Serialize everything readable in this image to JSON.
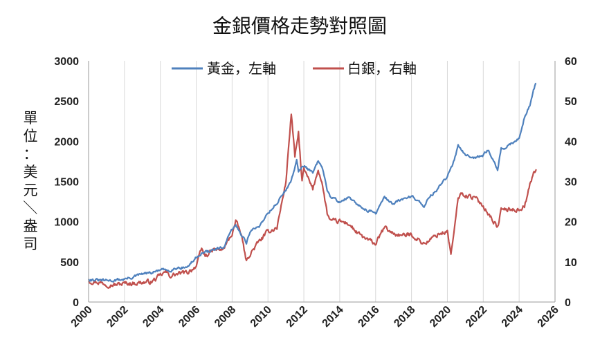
{
  "chart_data": {
    "type": "line",
    "title": "金銀價格走勢對照圖",
    "ylabel": "單位：美元／盎司",
    "xlabel": "",
    "xlim": [
      2000,
      2026
    ],
    "ylim_left": [
      0,
      3000
    ],
    "ylim_right": [
      0,
      60
    ],
    "x_ticks": [
      "2000",
      "2002",
      "2004",
      "2006",
      "2008",
      "2010",
      "2012",
      "2014",
      "2016",
      "2018",
      "2020",
      "2022",
      "2024",
      "2026"
    ],
    "y_ticks_left": [
      "0",
      "500",
      "1000",
      "1500",
      "2000",
      "2500",
      "3000"
    ],
    "y_ticks_right": [
      "0",
      "10",
      "20",
      "30",
      "40",
      "50",
      "60"
    ],
    "grid": "vertical",
    "legend_position": "top",
    "series": [
      {
        "name": "黃金，左軸",
        "axis": "left",
        "color": "#4F81BD",
        "x": [
          2000.0,
          2000.5,
          2001.0,
          2001.5,
          2002.0,
          2002.5,
          2003.0,
          2003.5,
          2004.0,
          2004.5,
          2005.0,
          2005.5,
          2006.0,
          2006.2,
          2006.5,
          2007.0,
          2007.5,
          2008.0,
          2008.2,
          2008.5,
          2008.8,
          2009.0,
          2009.5,
          2010.0,
          2010.5,
          2011.0,
          2011.3,
          2011.6,
          2011.7,
          2012.0,
          2012.5,
          2012.8,
          2013.0,
          2013.3,
          2013.5,
          2014.0,
          2014.5,
          2015.0,
          2015.5,
          2016.0,
          2016.5,
          2017.0,
          2017.5,
          2018.0,
          2018.7,
          2019.0,
          2019.5,
          2020.0,
          2020.3,
          2020.6,
          2020.8,
          2021.0,
          2021.5,
          2022.0,
          2022.3,
          2022.8,
          2023.0,
          2023.5,
          2024.0,
          2024.3,
          2024.6,
          2024.8,
          2024.95
        ],
        "values": [
          285,
          270,
          265,
          270,
          285,
          310,
          350,
          360,
          400,
          395,
          430,
          435,
          550,
          600,
          620,
          650,
          670,
          900,
          950,
          850,
          740,
          880,
          940,
          1110,
          1230,
          1400,
          1500,
          1780,
          1620,
          1700,
          1600,
          1750,
          1680,
          1400,
          1300,
          1250,
          1300,
          1200,
          1150,
          1100,
          1300,
          1220,
          1280,
          1320,
          1200,
          1300,
          1420,
          1560,
          1700,
          1950,
          1900,
          1840,
          1800,
          1820,
          1900,
          1650,
          1900,
          1950,
          2050,
          2300,
          2450,
          2650,
          2720
        ]
      },
      {
        "name": "白銀，右軸",
        "axis": "right",
        "color": "#C0504D",
        "x": [
          2000.0,
          2000.5,
          2001.0,
          2001.5,
          2002.0,
          2002.5,
          2003.0,
          2003.5,
          2004.0,
          2004.3,
          2004.5,
          2005.0,
          2005.5,
          2006.0,
          2006.3,
          2006.5,
          2007.0,
          2007.5,
          2008.0,
          2008.2,
          2008.5,
          2008.8,
          2009.0,
          2009.5,
          2010.0,
          2010.5,
          2011.0,
          2011.3,
          2011.5,
          2011.7,
          2011.9,
          2012.0,
          2012.5,
          2012.8,
          2013.0,
          2013.3,
          2013.5,
          2014.0,
          2014.5,
          2015.0,
          2015.5,
          2016.0,
          2016.5,
          2017.0,
          2017.5,
          2018.0,
          2018.7,
          2019.0,
          2019.5,
          2020.0,
          2020.2,
          2020.4,
          2020.6,
          2020.8,
          2021.0,
          2021.5,
          2022.0,
          2022.3,
          2022.8,
          2023.0,
          2023.5,
          2024.0,
          2024.3,
          2024.6,
          2024.8,
          2024.95
        ],
        "values": [
          5.3,
          5.0,
          4.5,
          4.3,
          4.6,
          4.7,
          4.9,
          5.0,
          6.5,
          7.5,
          6.5,
          7.0,
          7.3,
          9.0,
          13.0,
          11.5,
          13.0,
          13.0,
          17.0,
          20.0,
          17.0,
          10.0,
          12.0,
          15.0,
          17.5,
          18.5,
          30.0,
          47.0,
          36.0,
          42.0,
          30.0,
          33.0,
          28.0,
          33.0,
          30.0,
          22.0,
          20.0,
          20.0,
          19.5,
          17.0,
          15.5,
          14.5,
          18.5,
          17.0,
          16.5,
          16.8,
          14.5,
          15.3,
          17.0,
          17.5,
          12.0,
          18.0,
          26.0,
          27.0,
          26.5,
          26.0,
          24.0,
          22.0,
          18.5,
          23.0,
          23.0,
          23.0,
          24.0,
          29.0,
          32.0,
          33.0
        ]
      }
    ]
  }
}
